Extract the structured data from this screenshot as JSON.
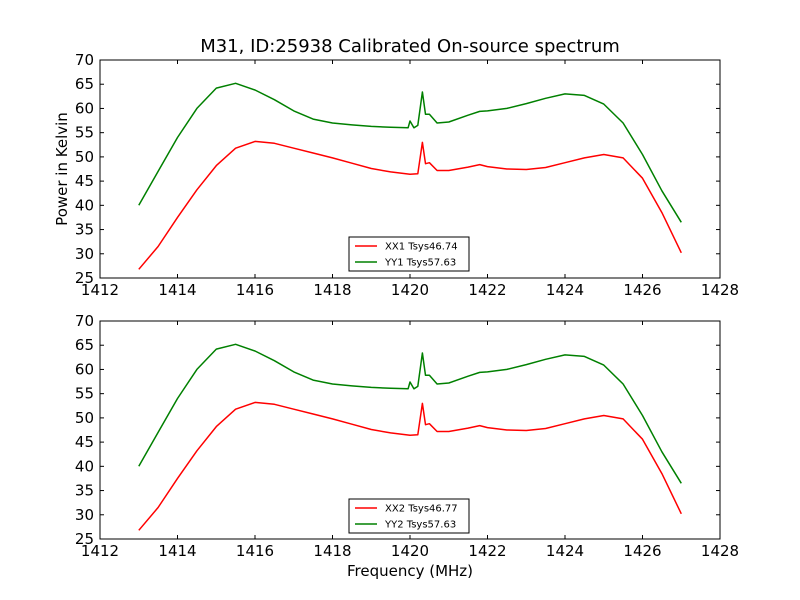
{
  "title": "M31, ID:25938 Calibrated On-source spectrum",
  "colors": {
    "xx": "#ff0000",
    "yy": "#008000",
    "axes": "#000000"
  },
  "chart_data": [
    {
      "type": "line",
      "xlabel": "",
      "ylabel": "Power in Kelvin",
      "xlim": [
        1412,
        1428
      ],
      "ylim": [
        25,
        70
      ],
      "xticks": [
        1412,
        1414,
        1416,
        1418,
        1420,
        1422,
        1424,
        1426,
        1428
      ],
      "yticks": [
        25,
        30,
        35,
        40,
        45,
        50,
        55,
        60,
        65,
        70
      ],
      "legend_position": "lower-center",
      "series": [
        {
          "name": "XX1 Tsys46.74",
          "color": "#ff0000",
          "x": [
            1413.0,
            1413.5,
            1414.0,
            1414.5,
            1415.0,
            1415.5,
            1416.0,
            1416.5,
            1417.0,
            1417.5,
            1418.0,
            1418.5,
            1419.0,
            1419.5,
            1420.0,
            1420.2,
            1420.32,
            1420.4,
            1420.5,
            1420.7,
            1421.0,
            1421.5,
            1421.8,
            1422.0,
            1422.5,
            1423.0,
            1423.5,
            1424.0,
            1424.5,
            1425.0,
            1425.5,
            1426.0,
            1426.5,
            1427.0
          ],
          "y": [
            26.8,
            31.5,
            37.5,
            43.2,
            48.2,
            51.8,
            53.2,
            52.8,
            51.8,
            50.8,
            49.8,
            48.7,
            47.6,
            46.9,
            46.4,
            46.5,
            53.0,
            48.6,
            48.8,
            47.2,
            47.2,
            47.9,
            48.4,
            48.0,
            47.5,
            47.4,
            47.8,
            48.8,
            49.8,
            50.5,
            49.8,
            45.6,
            38.5,
            30.2
          ]
        },
        {
          "name": "YY1 Tsys57.63",
          "color": "#008000",
          "x": [
            1413.0,
            1413.5,
            1414.0,
            1414.5,
            1415.0,
            1415.5,
            1416.0,
            1416.5,
            1417.0,
            1417.5,
            1418.0,
            1418.5,
            1419.0,
            1419.5,
            1419.95,
            1420.0,
            1420.1,
            1420.2,
            1420.32,
            1420.4,
            1420.5,
            1420.7,
            1421.0,
            1421.5,
            1421.8,
            1422.0,
            1422.5,
            1423.0,
            1423.5,
            1424.0,
            1424.5,
            1425.0,
            1425.5,
            1426.0,
            1426.5,
            1427.0
          ],
          "y": [
            40.0,
            47.0,
            54.0,
            60.0,
            64.2,
            65.2,
            63.8,
            61.8,
            59.5,
            57.8,
            57.0,
            56.6,
            56.3,
            56.1,
            56.0,
            57.4,
            56.0,
            56.5,
            63.4,
            58.8,
            58.8,
            57.0,
            57.2,
            58.6,
            59.4,
            59.5,
            60.0,
            61.0,
            62.1,
            63.0,
            62.7,
            60.9,
            57.0,
            50.5,
            43.0,
            36.5
          ]
        }
      ]
    },
    {
      "type": "line",
      "xlabel": "Frequency (MHz)",
      "ylabel": "",
      "xlim": [
        1412,
        1428
      ],
      "ylim": [
        25,
        70
      ],
      "xticks": [
        1412,
        1414,
        1416,
        1418,
        1420,
        1422,
        1424,
        1426,
        1428
      ],
      "yticks": [
        25,
        30,
        35,
        40,
        45,
        50,
        55,
        60,
        65,
        70
      ],
      "legend_position": "lower-center",
      "series": [
        {
          "name": "XX2 Tsys46.77",
          "color": "#ff0000",
          "x": [
            1413.0,
            1413.5,
            1414.0,
            1414.5,
            1415.0,
            1415.5,
            1416.0,
            1416.5,
            1417.0,
            1417.5,
            1418.0,
            1418.5,
            1419.0,
            1419.5,
            1420.0,
            1420.2,
            1420.32,
            1420.4,
            1420.5,
            1420.7,
            1421.0,
            1421.5,
            1421.8,
            1422.0,
            1422.5,
            1423.0,
            1423.5,
            1424.0,
            1424.5,
            1425.0,
            1425.5,
            1426.0,
            1426.5,
            1427.0
          ],
          "y": [
            26.8,
            31.5,
            37.5,
            43.2,
            48.2,
            51.8,
            53.2,
            52.8,
            51.8,
            50.8,
            49.8,
            48.7,
            47.6,
            46.9,
            46.4,
            46.5,
            53.0,
            48.6,
            48.8,
            47.2,
            47.2,
            47.9,
            48.4,
            48.0,
            47.5,
            47.4,
            47.8,
            48.8,
            49.8,
            50.5,
            49.8,
            45.6,
            38.5,
            30.2
          ]
        },
        {
          "name": "YY2 Tsys57.63",
          "color": "#008000",
          "x": [
            1413.0,
            1413.5,
            1414.0,
            1414.5,
            1415.0,
            1415.5,
            1416.0,
            1416.5,
            1417.0,
            1417.5,
            1418.0,
            1418.5,
            1419.0,
            1419.5,
            1419.95,
            1420.0,
            1420.1,
            1420.2,
            1420.32,
            1420.4,
            1420.5,
            1420.7,
            1421.0,
            1421.5,
            1421.8,
            1422.0,
            1422.5,
            1423.0,
            1423.5,
            1424.0,
            1424.5,
            1425.0,
            1425.5,
            1426.0,
            1426.5,
            1427.0
          ],
          "y": [
            40.0,
            47.0,
            54.0,
            60.0,
            64.2,
            65.2,
            63.8,
            61.8,
            59.5,
            57.8,
            57.0,
            56.6,
            56.3,
            56.1,
            56.0,
            57.4,
            56.0,
            56.5,
            63.4,
            58.8,
            58.8,
            57.0,
            57.2,
            58.6,
            59.4,
            59.5,
            60.0,
            61.0,
            62.1,
            63.0,
            62.7,
            60.9,
            57.0,
            50.5,
            43.0,
            36.5
          ]
        }
      ]
    }
  ]
}
